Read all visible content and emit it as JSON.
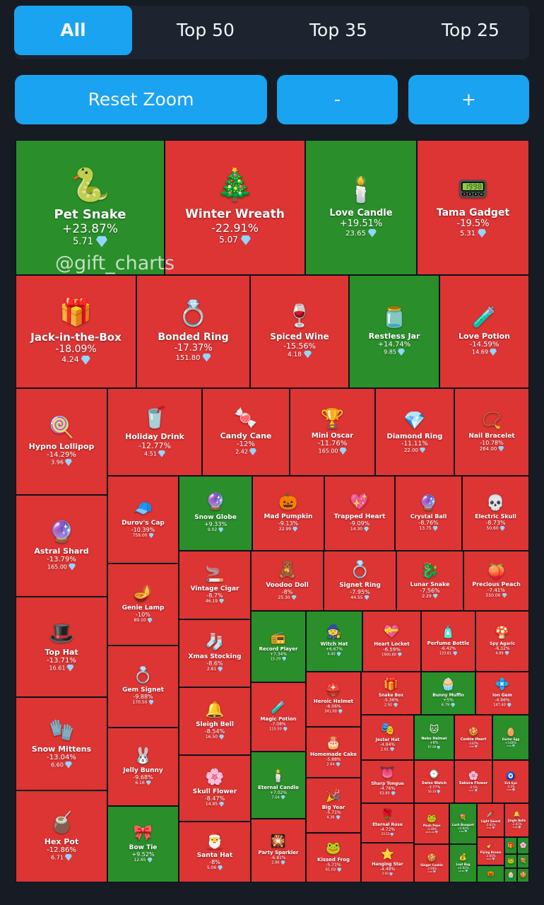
{
  "tabs": [
    {
      "label": "All",
      "active": true
    },
    {
      "label": "Top 50",
      "active": false
    },
    {
      "label": "Top 35",
      "active": false
    },
    {
      "label": "Top 25",
      "active": false
    }
  ],
  "buttons": {
    "reset": "Reset Zoom",
    "minus": "-",
    "plus": "+"
  },
  "watermark": "@gift_charts",
  "colors": {
    "negative": "#dd3434",
    "positive": "#2a8e2a",
    "accent": "#1aa3f0"
  },
  "chart_data": {
    "type": "treemap",
    "items": [
      {
        "name": "Pet Snake",
        "change": "+23.87%",
        "price": "5.71",
        "icon": "🐍"
      },
      {
        "name": "Winter Wreath",
        "change": "-22.91%",
        "price": "5.07",
        "icon": "🎄"
      },
      {
        "name": "Love Candle",
        "change": "+19.51%",
        "price": "23.65",
        "icon": "🕯️"
      },
      {
        "name": "Tama Gadget",
        "change": "-19.5%",
        "price": "5.31",
        "icon": "📟"
      },
      {
        "name": "Jack-in-the-Box",
        "change": "-18.09%",
        "price": "4.24",
        "icon": "🎁"
      },
      {
        "name": "Bonded Ring",
        "change": "-17.37%",
        "price": "151.80",
        "icon": "💍"
      },
      {
        "name": "Spiced Wine",
        "change": "-15.56%",
        "price": "4.18",
        "icon": "🍷"
      },
      {
        "name": "Restless Jar",
        "change": "+14.74%",
        "price": "9.85",
        "icon": "🫙"
      },
      {
        "name": "Love Potion",
        "change": "-14.59%",
        "price": "14.69",
        "icon": "🧪"
      },
      {
        "name": "Hypno Lollipop",
        "change": "-14.29%",
        "price": "3.96",
        "icon": "🍭"
      },
      {
        "name": "Holiday Drink",
        "change": "-12.77%",
        "price": "4.51",
        "icon": "🥤"
      },
      {
        "name": "Candy Cane",
        "change": "-12%",
        "price": "2.42",
        "icon": "🍬"
      },
      {
        "name": "Mini Oscar",
        "change": "-11.76%",
        "price": "165.00",
        "icon": "🏆"
      },
      {
        "name": "Diamond Ring",
        "change": "-11.11%",
        "price": "22.00",
        "icon": "💎"
      },
      {
        "name": "Nail Bracelet",
        "change": "-10.78%",
        "price": "264.00",
        "icon": "📿"
      },
      {
        "name": "Astral Shard",
        "change": "-13.79%",
        "price": "165.00",
        "icon": "🔮"
      },
      {
        "name": "Top Hat",
        "change": "-13.71%",
        "price": "16.61",
        "icon": "🎩"
      },
      {
        "name": "Snow Mittens",
        "change": "-13.04%",
        "price": "6.60",
        "icon": "🧤"
      },
      {
        "name": "Hex Pot",
        "change": "-12.86%",
        "price": "6.71",
        "icon": "🧉"
      },
      {
        "name": "Durov's Cap",
        "change": "-10.39%",
        "price": "759.00",
        "icon": "🧢"
      },
      {
        "name": "Genie Lamp",
        "change": "-10%",
        "price": "89.10",
        "icon": "🪔"
      },
      {
        "name": "Gem Signet",
        "change": "-9.88%",
        "price": "170.50",
        "icon": "💍"
      },
      {
        "name": "Jelly Bunny",
        "change": "-9.68%",
        "price": "6.16",
        "icon": "🐰"
      },
      {
        "name": "Bow Tie",
        "change": "+9.52%",
        "price": "12.65",
        "icon": "🎀"
      },
      {
        "name": "Snow Globe",
        "change": "+9.33%",
        "price": "9.02",
        "icon": "🔮"
      },
      {
        "name": "Mad Pumpkin",
        "change": "-9.13%",
        "price": "22.99",
        "icon": "🎃"
      },
      {
        "name": "Trapped Heart",
        "change": "-9.09%",
        "price": "14.30",
        "icon": "💖"
      },
      {
        "name": "Crystal Ball",
        "change": "-8.76%",
        "price": "13.75",
        "icon": "🔮"
      },
      {
        "name": "Electric Skull",
        "change": "-8.73%",
        "price": "50.60",
        "icon": "💀"
      },
      {
        "name": "Vintage Cigar",
        "change": "-8.7%",
        "price": "46.19",
        "icon": "🚬"
      },
      {
        "name": "Voodoo Doll",
        "change": "-8%",
        "price": "25.30",
        "icon": "🧸"
      },
      {
        "name": "Signet Ring",
        "change": "-7.95%",
        "price": "44.55",
        "icon": "💍"
      },
      {
        "name": "Lunar Snake",
        "change": "-7.56%",
        "price": "2.29",
        "icon": "🐉"
      },
      {
        "name": "Precious Peach",
        "change": "-7.41%",
        "price": "550.00",
        "icon": "🍑"
      },
      {
        "name": "Xmas Stocking",
        "change": "-8.6%",
        "price": "2.81",
        "icon": "🧦"
      },
      {
        "name": "Sleigh Bell",
        "change": "-8.54%",
        "price": "16.50",
        "icon": "🔔"
      },
      {
        "name": "Skull Flower",
        "change": "-8.47%",
        "price": "14.85",
        "icon": "🌸"
      },
      {
        "name": "Santa Hat",
        "change": "-8%",
        "price": "5.06",
        "icon": "🎅"
      },
      {
        "name": "Record Player",
        "change": "+7.34%",
        "price": "15.29",
        "icon": "📻"
      },
      {
        "name": "Witch Hat",
        "change": "+6.67%",
        "price": "4.40",
        "icon": "🧙"
      },
      {
        "name": "Heart Locket",
        "change": "-6.59%",
        "price": "1900.80",
        "icon": "💝"
      },
      {
        "name": "Perfume Bottle",
        "change": "-6.42%",
        "price": "133.81",
        "icon": "🧴"
      },
      {
        "name": "Spy Agaric",
        "change": "-6.32%",
        "price": "4.89",
        "icon": "🍄"
      },
      {
        "name": "Magic Potion",
        "change": "-7.08%",
        "price": "115.50",
        "icon": "🧪"
      },
      {
        "name": "Heroic Helmet",
        "change": "-6.06%",
        "price": "341.00",
        "icon": "⛑️"
      },
      {
        "name": "Snake Box",
        "change": "-5.36%",
        "price": "2.92",
        "icon": "🎁"
      },
      {
        "name": "Bunny Muffin",
        "change": "+5%",
        "price": "6.79",
        "icon": "🧁"
      },
      {
        "name": "Ion Gem",
        "change": "-4.96%",
        "price": "147.40",
        "icon": "💠"
      },
      {
        "name": "Homemade Cake",
        "change": "-5.88%",
        "price": "2.64",
        "icon": "🎂"
      },
      {
        "name": "Eternal Candle",
        "change": "+7.02%",
        "price": "7.04",
        "icon": "🕯️"
      },
      {
        "name": "Big Year",
        "change": "-5.71%",
        "price": "4.36",
        "icon": "🎉"
      },
      {
        "name": "Party Sparkler",
        "change": "-6.81%",
        "price": "2.86",
        "icon": "🎇"
      },
      {
        "name": "Kissed Frog",
        "change": "-5.71%",
        "price": "61.03",
        "icon": "🐸"
      },
      {
        "name": "Jester Hat",
        "change": "-4.84%",
        "price": "2.81",
        "icon": "🎭"
      },
      {
        "name": "Neko Helmet",
        "change": "+8%",
        "price": "67.09",
        "icon": "🐱"
      },
      {
        "name": "Cookie Heart",
        "change": "-3.87%",
        "price": "5.86",
        "icon": "🍪"
      },
      {
        "name": "Easter Egg",
        "change": "+3.86%",
        "price": "3.60",
        "icon": "🥚"
      },
      {
        "name": "Sharp Tongue",
        "change": "-4.76%",
        "price": "63.80",
        "icon": "👅"
      },
      {
        "name": "Swiss Watch",
        "change": "-3.77%",
        "price": "56.10",
        "icon": "⌚"
      },
      {
        "name": "Sakura Flower",
        "change": "-3.5%",
        "price": "6.27",
        "icon": "🌸"
      },
      {
        "name": "Evil Eye",
        "change": "-3.4%",
        "price": "4.59",
        "icon": "🧿"
      },
      {
        "name": "Eternal Rose",
        "change": "-4.72%",
        "price": "23.53",
        "icon": "🌹"
      },
      {
        "name": "Plush Pepe",
        "change": "-3.39%",
        "price": "4675.00",
        "icon": "🐸"
      },
      {
        "name": "Lush Bouquet",
        "change": "+2.92%",
        "price": "3.58",
        "icon": "💐"
      },
      {
        "name": "Light Sword",
        "change": "-2.81%",
        "price": "3.51",
        "icon": "🗡️"
      },
      {
        "name": "Jingle Bells",
        "change": "-2.65%",
        "price": "2.08",
        "icon": "🔔"
      },
      {
        "name": "Hanging Star",
        "change": "-4.49%",
        "price": "5.92",
        "icon": "⭐"
      },
      {
        "name": "Ginger Cookie",
        "change": "-2.94%",
        "price": "3.63",
        "icon": "🍪"
      },
      {
        "name": "Loot Bag",
        "change": "+2.92%",
        "price": "16.50",
        "icon": "💰"
      },
      {
        "name": "Flying Broom",
        "change": "-2.66%",
        "price": "8.81",
        "icon": "🧹"
      },
      {
        "name": "",
        "change": "",
        "price": "",
        "icon": "🎃"
      },
      {
        "name": "",
        "change": "",
        "price": "",
        "icon": "🎁"
      },
      {
        "name": "",
        "change": "",
        "price": "",
        "icon": "🌸"
      },
      {
        "name": "",
        "change": "",
        "price": "",
        "icon": "🐸"
      },
      {
        "name": "",
        "change": "",
        "price": "",
        "icon": "💐"
      },
      {
        "name": "",
        "change": "",
        "price": "",
        "icon": "🧁"
      },
      {
        "name": "",
        "change": "",
        "price": "",
        "icon": "🍪"
      }
    ]
  }
}
